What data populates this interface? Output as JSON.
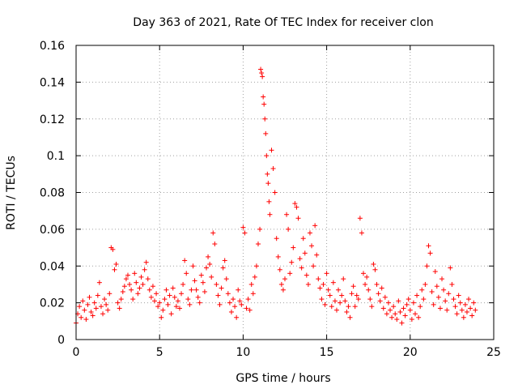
{
  "chart_data": {
    "type": "scatter",
    "title": "Day 363 of 2021, Rate Of TEC Index for receiver clon",
    "xlabel": "GPS time / hours",
    "ylabel": "ROTI / TECUs",
    "xlim": [
      0,
      25
    ],
    "ylim": [
      0,
      0.16
    ],
    "x_ticks": [
      "0",
      "5",
      "10",
      "15",
      "20",
      "25"
    ],
    "y_ticks": [
      "0",
      "0.02",
      "0.04",
      "0.06",
      "0.08",
      "0.1",
      "0.12",
      "0.14",
      "0.16"
    ],
    "grid": true,
    "marker": "+",
    "color": "#ff0000",
    "legend": "none",
    "series": [
      {
        "points": [
          [
            0.0,
            0.009
          ],
          [
            0.1,
            0.014
          ],
          [
            0.2,
            0.018
          ],
          [
            0.3,
            0.012
          ],
          [
            0.4,
            0.021
          ],
          [
            0.5,
            0.016
          ],
          [
            0.6,
            0.011
          ],
          [
            0.7,
            0.019
          ],
          [
            0.8,
            0.023
          ],
          [
            0.9,
            0.015
          ],
          [
            1.0,
            0.013
          ],
          [
            1.1,
            0.02
          ],
          [
            1.2,
            0.017
          ],
          [
            1.3,
            0.024
          ],
          [
            1.4,
            0.031
          ],
          [
            1.5,
            0.018
          ],
          [
            1.6,
            0.014
          ],
          [
            1.7,
            0.022
          ],
          [
            1.8,
            0.019
          ],
          [
            1.9,
            0.016
          ],
          [
            2.0,
            0.025
          ],
          [
            2.1,
            0.05
          ],
          [
            2.2,
            0.049
          ],
          [
            2.3,
            0.038
          ],
          [
            2.4,
            0.041
          ],
          [
            2.5,
            0.02
          ],
          [
            2.6,
            0.017
          ],
          [
            2.7,
            0.022
          ],
          [
            2.8,
            0.026
          ],
          [
            2.9,
            0.029
          ],
          [
            3.0,
            0.033
          ],
          [
            3.1,
            0.035
          ],
          [
            3.2,
            0.03
          ],
          [
            3.3,
            0.027
          ],
          [
            3.4,
            0.022
          ],
          [
            3.5,
            0.036
          ],
          [
            3.6,
            0.031
          ],
          [
            3.7,
            0.025
          ],
          [
            3.8,
            0.028
          ],
          [
            3.9,
            0.034
          ],
          [
            4.0,
            0.03
          ],
          [
            4.1,
            0.038
          ],
          [
            4.2,
            0.042
          ],
          [
            4.3,
            0.033
          ],
          [
            4.4,
            0.027
          ],
          [
            4.5,
            0.023
          ],
          [
            4.6,
            0.029
          ],
          [
            4.7,
            0.021
          ],
          [
            4.8,
            0.025
          ],
          [
            4.9,
            0.018
          ],
          [
            5.0,
            0.02
          ],
          [
            5.1,
            0.012
          ],
          [
            5.2,
            0.016
          ],
          [
            5.3,
            0.022
          ],
          [
            5.4,
            0.027
          ],
          [
            5.5,
            0.019
          ],
          [
            5.6,
            0.024
          ],
          [
            5.7,
            0.014
          ],
          [
            5.8,
            0.028
          ],
          [
            5.9,
            0.023
          ],
          [
            6.0,
            0.018
          ],
          [
            6.1,
            0.021
          ],
          [
            6.2,
            0.017
          ],
          [
            6.3,
            0.025
          ],
          [
            6.4,
            0.03
          ],
          [
            6.5,
            0.043
          ],
          [
            6.6,
            0.036
          ],
          [
            6.7,
            0.022
          ],
          [
            6.8,
            0.019
          ],
          [
            6.9,
            0.027
          ],
          [
            7.0,
            0.04
          ],
          [
            7.1,
            0.032
          ],
          [
            7.2,
            0.027
          ],
          [
            7.3,
            0.023
          ],
          [
            7.4,
            0.02
          ],
          [
            7.5,
            0.035
          ],
          [
            7.6,
            0.031
          ],
          [
            7.7,
            0.026
          ],
          [
            7.8,
            0.039
          ],
          [
            7.9,
            0.045
          ],
          [
            8.0,
            0.041
          ],
          [
            8.1,
            0.034
          ],
          [
            8.2,
            0.058
          ],
          [
            8.3,
            0.052
          ],
          [
            8.4,
            0.03
          ],
          [
            8.5,
            0.024
          ],
          [
            8.6,
            0.019
          ],
          [
            8.7,
            0.028
          ],
          [
            8.8,
            0.039
          ],
          [
            8.9,
            0.043
          ],
          [
            9.0,
            0.033
          ],
          [
            9.1,
            0.025
          ],
          [
            9.2,
            0.02
          ],
          [
            9.3,
            0.015
          ],
          [
            9.4,
            0.022
          ],
          [
            9.5,
            0.018
          ],
          [
            9.6,
            0.012
          ],
          [
            9.7,
            0.027
          ],
          [
            9.8,
            0.021
          ],
          [
            9.9,
            0.019
          ],
          [
            10.0,
            0.061
          ],
          [
            10.1,
            0.058
          ],
          [
            10.2,
            0.017
          ],
          [
            10.3,
            0.022
          ],
          [
            10.4,
            0.016
          ],
          [
            10.5,
            0.03
          ],
          [
            10.6,
            0.025
          ],
          [
            10.7,
            0.034
          ],
          [
            10.8,
            0.04
          ],
          [
            10.9,
            0.052
          ],
          [
            11.0,
            0.06
          ],
          [
            11.05,
            0.147
          ],
          [
            11.1,
            0.145
          ],
          [
            11.15,
            0.143
          ],
          [
            11.2,
            0.132
          ],
          [
            11.25,
            0.128
          ],
          [
            11.3,
            0.12
          ],
          [
            11.35,
            0.112
          ],
          [
            11.4,
            0.1
          ],
          [
            11.45,
            0.09
          ],
          [
            11.5,
            0.085
          ],
          [
            11.55,
            0.075
          ],
          [
            11.6,
            0.068
          ],
          [
            11.7,
            0.103
          ],
          [
            11.8,
            0.093
          ],
          [
            11.9,
            0.08
          ],
          [
            12.0,
            0.055
          ],
          [
            12.1,
            0.045
          ],
          [
            12.2,
            0.038
          ],
          [
            12.3,
            0.03
          ],
          [
            12.4,
            0.027
          ],
          [
            12.5,
            0.033
          ],
          [
            12.6,
            0.068
          ],
          [
            12.7,
            0.06
          ],
          [
            12.8,
            0.036
          ],
          [
            12.9,
            0.042
          ],
          [
            13.0,
            0.05
          ],
          [
            13.1,
            0.074
          ],
          [
            13.2,
            0.072
          ],
          [
            13.3,
            0.066
          ],
          [
            13.4,
            0.044
          ],
          [
            13.5,
            0.039
          ],
          [
            13.6,
            0.055
          ],
          [
            13.7,
            0.047
          ],
          [
            13.8,
            0.035
          ],
          [
            13.9,
            0.03
          ],
          [
            14.0,
            0.058
          ],
          [
            14.1,
            0.051
          ],
          [
            14.2,
            0.04
          ],
          [
            14.3,
            0.062
          ],
          [
            14.4,
            0.046
          ],
          [
            14.5,
            0.033
          ],
          [
            14.6,
            0.028
          ],
          [
            14.7,
            0.022
          ],
          [
            14.8,
            0.03
          ],
          [
            14.9,
            0.019
          ],
          [
            15.0,
            0.036
          ],
          [
            15.1,
            0.027
          ],
          [
            15.2,
            0.024
          ],
          [
            15.3,
            0.018
          ],
          [
            15.4,
            0.031
          ],
          [
            15.5,
            0.021
          ],
          [
            15.6,
            0.016
          ],
          [
            15.7,
            0.027
          ],
          [
            15.8,
            0.02
          ],
          [
            15.9,
            0.024
          ],
          [
            16.0,
            0.033
          ],
          [
            16.1,
            0.021
          ],
          [
            16.2,
            0.015
          ],
          [
            16.3,
            0.018
          ],
          [
            16.4,
            0.012
          ],
          [
            16.5,
            0.025
          ],
          [
            16.6,
            0.029
          ],
          [
            16.7,
            0.018
          ],
          [
            16.8,
            0.024
          ],
          [
            16.9,
            0.022
          ],
          [
            17.0,
            0.066
          ],
          [
            17.1,
            0.058
          ],
          [
            17.2,
            0.036
          ],
          [
            17.3,
            0.03
          ],
          [
            17.4,
            0.034
          ],
          [
            17.5,
            0.027
          ],
          [
            17.6,
            0.022
          ],
          [
            17.7,
            0.018
          ],
          [
            17.8,
            0.041
          ],
          [
            17.9,
            0.038
          ],
          [
            18.0,
            0.03
          ],
          [
            18.1,
            0.025
          ],
          [
            18.2,
            0.021
          ],
          [
            18.3,
            0.028
          ],
          [
            18.4,
            0.017
          ],
          [
            18.5,
            0.023
          ],
          [
            18.6,
            0.014
          ],
          [
            18.7,
            0.02
          ],
          [
            18.8,
            0.016
          ],
          [
            18.9,
            0.012
          ],
          [
            19.0,
            0.018
          ],
          [
            19.1,
            0.014
          ],
          [
            19.2,
            0.011
          ],
          [
            19.3,
            0.021
          ],
          [
            19.4,
            0.015
          ],
          [
            19.5,
            0.009
          ],
          [
            19.6,
            0.017
          ],
          [
            19.7,
            0.013
          ],
          [
            19.8,
            0.019
          ],
          [
            19.9,
            0.022
          ],
          [
            20.0,
            0.016
          ],
          [
            20.1,
            0.011
          ],
          [
            20.2,
            0.02
          ],
          [
            20.3,
            0.014
          ],
          [
            20.4,
            0.024
          ],
          [
            20.5,
            0.012
          ],
          [
            20.6,
            0.018
          ],
          [
            20.7,
            0.027
          ],
          [
            20.8,
            0.022
          ],
          [
            20.9,
            0.03
          ],
          [
            21.0,
            0.04
          ],
          [
            21.1,
            0.051
          ],
          [
            21.2,
            0.047
          ],
          [
            21.3,
            0.026
          ],
          [
            21.4,
            0.019
          ],
          [
            21.5,
            0.037
          ],
          [
            21.6,
            0.029
          ],
          [
            21.7,
            0.023
          ],
          [
            21.8,
            0.017
          ],
          [
            21.9,
            0.033
          ],
          [
            22.0,
            0.027
          ],
          [
            22.1,
            0.021
          ],
          [
            22.2,
            0.016
          ],
          [
            22.3,
            0.025
          ],
          [
            22.4,
            0.039
          ],
          [
            22.5,
            0.03
          ],
          [
            22.6,
            0.022
          ],
          [
            22.7,
            0.018
          ],
          [
            22.8,
            0.014
          ],
          [
            22.9,
            0.024
          ],
          [
            23.0,
            0.02
          ],
          [
            23.1,
            0.016
          ],
          [
            23.2,
            0.012
          ],
          [
            23.3,
            0.019
          ],
          [
            23.4,
            0.015
          ],
          [
            23.5,
            0.022
          ],
          [
            23.6,
            0.017
          ],
          [
            23.7,
            0.013
          ],
          [
            23.8,
            0.02
          ],
          [
            23.9,
            0.016
          ]
        ]
      }
    ]
  }
}
